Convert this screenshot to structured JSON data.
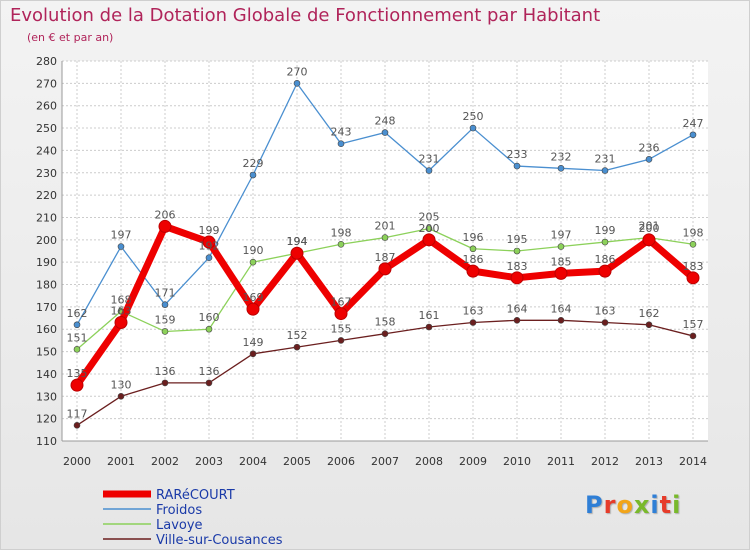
{
  "chart_data": {
    "type": "line",
    "title": "Evolution de la Dotation Globale de Fonctionnement par Habitant",
    "subtitle": "(en € et par an)",
    "xlabel": "",
    "ylabel": "",
    "ylim": [
      110,
      280
    ],
    "ytick_step": 10,
    "grid": true,
    "legend_position": "bottom-left",
    "categories": [
      "2000",
      "2001",
      "2002",
      "2003",
      "2004",
      "2005",
      "2006",
      "2007",
      "2008",
      "2009",
      "2010",
      "2011",
      "2012",
      "2013",
      "2014"
    ],
    "series": [
      {
        "name": "Ville-sur-Cousances",
        "color": "#6b1f1f",
        "emphasis": false,
        "values": [
          117,
          130,
          136,
          136,
          149,
          152,
          155,
          158,
          161,
          163,
          164,
          164,
          163,
          162,
          157
        ]
      },
      {
        "name": "Lavoye",
        "color": "#8cd15a",
        "emphasis": false,
        "values": [
          151,
          168,
          159,
          160,
          190,
          194,
          198,
          201,
          205,
          196,
          195,
          197,
          199,
          201,
          198
        ]
      },
      {
        "name": "Froidos",
        "color": "#4a8fd0",
        "emphasis": false,
        "values": [
          162,
          197,
          171,
          192,
          229,
          270,
          243,
          248,
          231,
          250,
          233,
          232,
          231,
          236,
          247
        ]
      },
      {
        "name": "RARéCOURT",
        "color": "#ee0000",
        "emphasis": true,
        "values": [
          135,
          163,
          206,
          199,
          169,
          194,
          167,
          187,
          200,
          186,
          183,
          185,
          186,
          200,
          183
        ]
      }
    ]
  },
  "legend_order": [
    "RARéCOURT",
    "Froidos",
    "Lavoye",
    "Ville-sur-Cousances"
  ],
  "logo": {
    "letters": [
      "P",
      "r",
      "o",
      "x",
      "i",
      "t",
      "i"
    ],
    "colors": [
      "#2f7fd6",
      "#e63c2a",
      "#f2a51a",
      "#79b92b",
      "#2f7fd6",
      "#e63c2a",
      "#79b92b"
    ]
  }
}
